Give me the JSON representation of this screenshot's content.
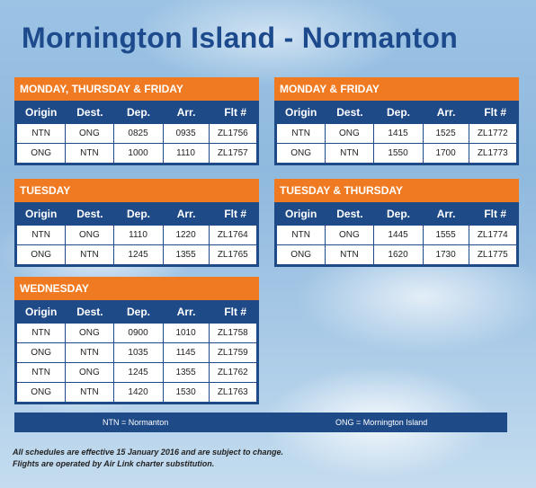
{
  "title": "Mornington Island - Normanton",
  "columns": [
    "Origin",
    "Dest.",
    "Dep.",
    "Arr.",
    "Flt #"
  ],
  "blocks": [
    {
      "label": "MONDAY, THURSDAY & FRIDAY",
      "rows": [
        [
          "NTN",
          "ONG",
          "0825",
          "0935",
          "ZL1756"
        ],
        [
          "ONG",
          "NTN",
          "1000",
          "1110",
          "ZL1757"
        ]
      ]
    },
    {
      "label": "MONDAY & FRIDAY",
      "rows": [
        [
          "NTN",
          "ONG",
          "1415",
          "1525",
          "ZL1772"
        ],
        [
          "ONG",
          "NTN",
          "1550",
          "1700",
          "ZL1773"
        ]
      ]
    },
    {
      "label": "TUESDAY",
      "rows": [
        [
          "NTN",
          "ONG",
          "1110",
          "1220",
          "ZL1764"
        ],
        [
          "ONG",
          "NTN",
          "1245",
          "1355",
          "ZL1765"
        ]
      ]
    },
    {
      "label": "TUESDAY & THURSDAY",
      "rows": [
        [
          "NTN",
          "ONG",
          "1445",
          "1555",
          "ZL1774"
        ],
        [
          "ONG",
          "NTN",
          "1620",
          "1730",
          "ZL1775"
        ]
      ]
    },
    {
      "label": "WEDNESDAY",
      "rows": [
        [
          "NTN",
          "ONG",
          "0900",
          "1010",
          "ZL1758"
        ],
        [
          "ONG",
          "NTN",
          "1035",
          "1145",
          "ZL1759"
        ],
        [
          "NTN",
          "ONG",
          "1245",
          "1355",
          "ZL1762"
        ],
        [
          "ONG",
          "NTN",
          "1420",
          "1530",
          "ZL1763"
        ]
      ]
    }
  ],
  "legend": {
    "left": "NTN = Normanton",
    "right": "ONG = Mornington Island"
  },
  "notes": [
    "All schedules are effective 15 January 2016 and are subject to change.",
    "Flights are operated by Air Link charter substitution."
  ],
  "colors": {
    "accent_orange": "#f07a22",
    "navy": "#1e4a88",
    "title": "#1d4a8c"
  }
}
